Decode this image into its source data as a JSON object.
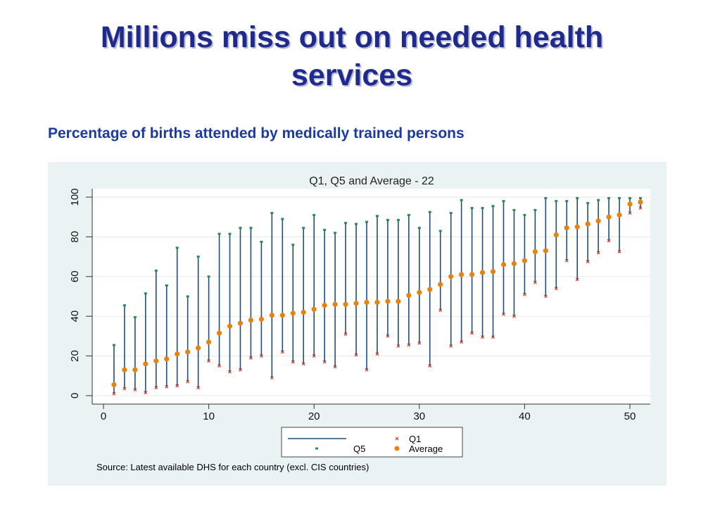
{
  "slide": {
    "title_line1": "Millions miss out on needed health",
    "title_line2": "services",
    "subtitle": "Percentage of births attended by medically trained persons"
  },
  "colors": {
    "title": "#1f2a8c",
    "subtitle": "#1a3aa0",
    "panel_bg": "#eaf2f3",
    "range_line": "#1f4e79",
    "q1_marker": "#c0392b",
    "q5_marker": "#2e8b57",
    "average_marker": "#e8820c"
  },
  "chart_data": {
    "type": "scatter",
    "title": "Q1, Q5 and Average - 22",
    "xlim": [
      0,
      52
    ],
    "ylim": [
      0,
      100
    ],
    "x_ticks": [
      0,
      10,
      20,
      30,
      40,
      50
    ],
    "y_ticks": [
      0,
      20,
      40,
      60,
      80,
      100
    ],
    "grid": true,
    "legend_position": "bottom",
    "source": "Source: Latest available DHS for each country (excl. CIS countries)",
    "x": [
      1,
      2,
      3,
      4,
      5,
      6,
      7,
      8,
      9,
      10,
      11,
      12,
      13,
      14,
      15,
      16,
      17,
      18,
      19,
      20,
      21,
      22,
      23,
      24,
      25,
      26,
      27,
      28,
      29,
      30,
      31,
      32,
      33,
      34,
      35,
      36,
      37,
      38,
      39,
      40,
      41,
      42,
      43,
      44,
      45,
      46,
      47,
      48,
      49,
      50,
      51
    ],
    "series": [
      {
        "name": "Q1",
        "marker": "x",
        "values": [
          1,
          3.5,
          3,
          1.5,
          4,
          4.5,
          5,
          7,
          4,
          17.5,
          15,
          12,
          13,
          19,
          20,
          9,
          22,
          17,
          16,
          20,
          17,
          14.5,
          31,
          20.5,
          13,
          21,
          30,
          25,
          25.5,
          26.5,
          15,
          43,
          25,
          27,
          31.5,
          29.5,
          29.5,
          41,
          40,
          51,
          57,
          50,
          54,
          68,
          58.5,
          67.5,
          72,
          78,
          72.5,
          92,
          94.5
        ]
      },
      {
        "name": "Q5",
        "marker": "tick",
        "values": [
          25.5,
          45.5,
          39.5,
          51.5,
          63,
          55.5,
          74.5,
          50,
          70,
          60,
          81.5,
          81.5,
          84.5,
          84.5,
          77.5,
          92,
          89,
          76,
          84.5,
          91,
          83.5,
          82,
          87,
          86.5,
          87.5,
          90.5,
          88.5,
          88.5,
          91,
          84.5,
          92.5,
          83,
          92,
          98.5,
          94.5,
          94.5,
          95.5,
          98,
          93.5,
          91,
          93.5,
          99.5,
          98,
          98,
          99.5,
          97,
          98.5,
          99.5,
          99.5,
          99.5,
          99.5
        ]
      },
      {
        "name": "Average",
        "marker": "circle",
        "values": [
          5.5,
          13,
          13,
          16,
          17.5,
          18.5,
          21,
          22,
          24,
          27,
          31.5,
          35,
          36.5,
          38,
          38.5,
          40.5,
          40.5,
          41.5,
          42,
          43.5,
          45.5,
          46,
          46,
          46.5,
          47,
          47,
          47.5,
          47.5,
          50.5,
          52,
          53.5,
          56,
          60,
          61,
          61,
          62,
          62.5,
          66,
          66.5,
          68,
          72.5,
          73,
          81,
          84.5,
          85,
          86.5,
          88,
          90,
          91,
          96.5,
          97.5
        ]
      }
    ]
  }
}
